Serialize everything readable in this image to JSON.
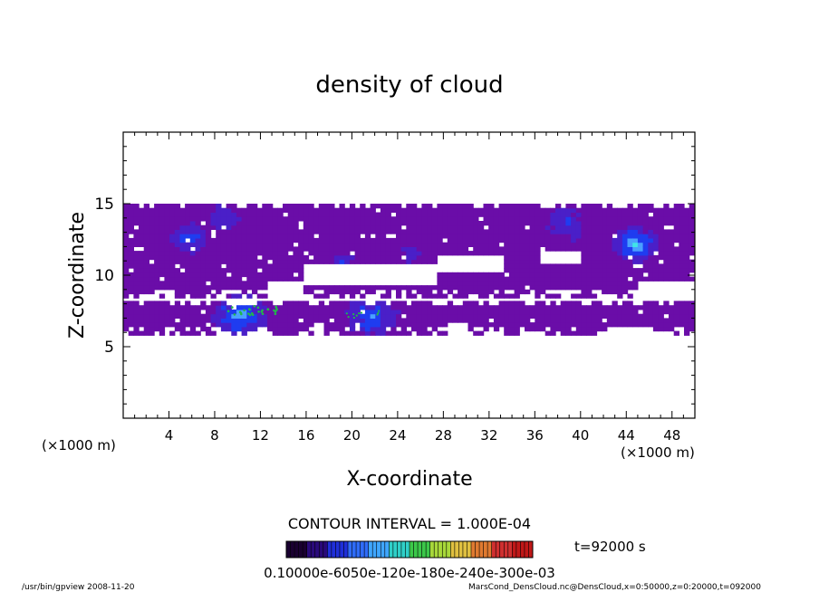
{
  "chart_data": {
    "type": "heatmap",
    "title": "density of cloud",
    "xlabel": "X-coordinate",
    "ylabel": "Z-coordinate",
    "x_unit": "(×1000 m)",
    "xlim": [
      0,
      50
    ],
    "ylim": [
      0,
      20
    ],
    "x_ticks": [
      "4",
      "8",
      "12",
      "16",
      "20",
      "24",
      "28",
      "32",
      "36",
      "40",
      "44",
      "48"
    ],
    "y_ticks": [
      "5",
      "10",
      "15"
    ],
    "contour_interval": "CONTOUR INTERVAL = 1.000E-04",
    "time_label": "t=92000 s",
    "colorbar_labels": "0.10000e-6050e-120e-180e-240e-300e-03",
    "colors": {
      "purple": "#6a0da8",
      "violet": "#4a1fc8",
      "blue": "#1f3cf0",
      "light_blue": "#4aa0ff",
      "cyan": "#3fe6e6",
      "green": "#22b84a"
    },
    "cloud_layers": [
      {
        "name": "upper",
        "z_range": [
          8.4,
          15.0
        ],
        "x_range": [
          0,
          50
        ]
      },
      {
        "name": "lower",
        "z_range": [
          5.8,
          8.2
        ],
        "x_range": [
          0,
          50
        ]
      }
    ]
  },
  "footer": {
    "left": "/usr/bin/gpview   2008-11-20",
    "right": "MarsCond_DensCloud.nc@DensCloud,x=0:50000,z=0:20000,t=092000"
  }
}
